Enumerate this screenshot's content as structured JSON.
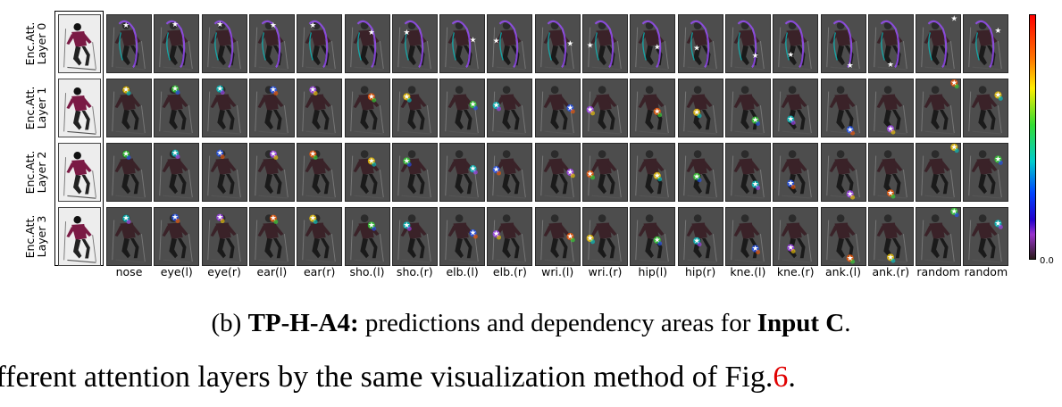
{
  "figure": {
    "row_labels": [
      [
        "Enc.Att.",
        "Layer 0"
      ],
      [
        "Enc.Att.",
        "Layer 1"
      ],
      [
        "Enc.Att.",
        "Layer 2"
      ],
      [
        "Enc.Att.",
        "Layer 3"
      ]
    ],
    "column_labels": [
      "nose",
      "eye(l)",
      "eye(r)",
      "ear(l)",
      "ear(r)",
      "sho.(l)",
      "sho.(r)",
      "elb.(l)",
      "elb.(r)",
      "wri.(l)",
      "wri.(r)",
      "hip(l)",
      "hip(r)",
      "kne.(l)",
      "kne.(r)",
      "ank.(l)",
      "ank.(r)",
      "random",
      "random"
    ],
    "colorbar_min_label": "0.0",
    "colorbar_colors": [
      "#ff0000",
      "#ff7700",
      "#ffee00",
      "#33dd33",
      "#00cccc",
      "#0044ff",
      "#2200cc",
      "#9933cc",
      "#2a1a1a"
    ]
  },
  "caption": {
    "prefix": "(b) ",
    "bold_title": "TP-H-A4:",
    "middle": " predictions and dependency areas for ",
    "bold_input": "Input C",
    "suffix": "."
  },
  "body_text": {
    "text": "ifferent attention layers by the same visualization method of Fig.",
    "ref": "6",
    "end": "."
  }
}
